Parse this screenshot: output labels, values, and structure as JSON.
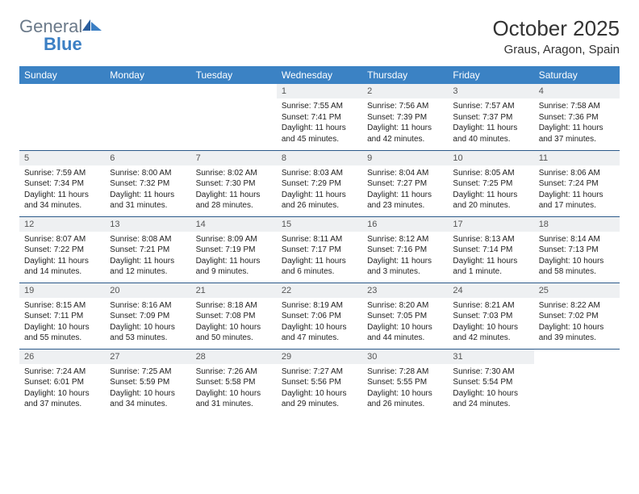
{
  "logo": {
    "general": "General",
    "blue": "Blue"
  },
  "title": "October 2025",
  "location": "Graus, Aragon, Spain",
  "colors": {
    "header_bg": "#3b82c4",
    "header_text": "#ffffff",
    "daynum_bg": "#eef0f2",
    "daynum_text": "#555555",
    "border": "#2c5a8a",
    "logo_general": "#6b7a8a",
    "logo_blue": "#3b7fc4"
  },
  "weekdays": [
    "Sunday",
    "Monday",
    "Tuesday",
    "Wednesday",
    "Thursday",
    "Friday",
    "Saturday"
  ],
  "weeks": [
    [
      {
        "day": "",
        "sunrise": "",
        "sunset": "",
        "daylight": ""
      },
      {
        "day": "",
        "sunrise": "",
        "sunset": "",
        "daylight": ""
      },
      {
        "day": "",
        "sunrise": "",
        "sunset": "",
        "daylight": ""
      },
      {
        "day": "1",
        "sunrise": "Sunrise: 7:55 AM",
        "sunset": "Sunset: 7:41 PM",
        "daylight": "Daylight: 11 hours and 45 minutes."
      },
      {
        "day": "2",
        "sunrise": "Sunrise: 7:56 AM",
        "sunset": "Sunset: 7:39 PM",
        "daylight": "Daylight: 11 hours and 42 minutes."
      },
      {
        "day": "3",
        "sunrise": "Sunrise: 7:57 AM",
        "sunset": "Sunset: 7:37 PM",
        "daylight": "Daylight: 11 hours and 40 minutes."
      },
      {
        "day": "4",
        "sunrise": "Sunrise: 7:58 AM",
        "sunset": "Sunset: 7:36 PM",
        "daylight": "Daylight: 11 hours and 37 minutes."
      }
    ],
    [
      {
        "day": "5",
        "sunrise": "Sunrise: 7:59 AM",
        "sunset": "Sunset: 7:34 PM",
        "daylight": "Daylight: 11 hours and 34 minutes."
      },
      {
        "day": "6",
        "sunrise": "Sunrise: 8:00 AM",
        "sunset": "Sunset: 7:32 PM",
        "daylight": "Daylight: 11 hours and 31 minutes."
      },
      {
        "day": "7",
        "sunrise": "Sunrise: 8:02 AM",
        "sunset": "Sunset: 7:30 PM",
        "daylight": "Daylight: 11 hours and 28 minutes."
      },
      {
        "day": "8",
        "sunrise": "Sunrise: 8:03 AM",
        "sunset": "Sunset: 7:29 PM",
        "daylight": "Daylight: 11 hours and 26 minutes."
      },
      {
        "day": "9",
        "sunrise": "Sunrise: 8:04 AM",
        "sunset": "Sunset: 7:27 PM",
        "daylight": "Daylight: 11 hours and 23 minutes."
      },
      {
        "day": "10",
        "sunrise": "Sunrise: 8:05 AM",
        "sunset": "Sunset: 7:25 PM",
        "daylight": "Daylight: 11 hours and 20 minutes."
      },
      {
        "day": "11",
        "sunrise": "Sunrise: 8:06 AM",
        "sunset": "Sunset: 7:24 PM",
        "daylight": "Daylight: 11 hours and 17 minutes."
      }
    ],
    [
      {
        "day": "12",
        "sunrise": "Sunrise: 8:07 AM",
        "sunset": "Sunset: 7:22 PM",
        "daylight": "Daylight: 11 hours and 14 minutes."
      },
      {
        "day": "13",
        "sunrise": "Sunrise: 8:08 AM",
        "sunset": "Sunset: 7:21 PM",
        "daylight": "Daylight: 11 hours and 12 minutes."
      },
      {
        "day": "14",
        "sunrise": "Sunrise: 8:09 AM",
        "sunset": "Sunset: 7:19 PM",
        "daylight": "Daylight: 11 hours and 9 minutes."
      },
      {
        "day": "15",
        "sunrise": "Sunrise: 8:11 AM",
        "sunset": "Sunset: 7:17 PM",
        "daylight": "Daylight: 11 hours and 6 minutes."
      },
      {
        "day": "16",
        "sunrise": "Sunrise: 8:12 AM",
        "sunset": "Sunset: 7:16 PM",
        "daylight": "Daylight: 11 hours and 3 minutes."
      },
      {
        "day": "17",
        "sunrise": "Sunrise: 8:13 AM",
        "sunset": "Sunset: 7:14 PM",
        "daylight": "Daylight: 11 hours and 1 minute."
      },
      {
        "day": "18",
        "sunrise": "Sunrise: 8:14 AM",
        "sunset": "Sunset: 7:13 PM",
        "daylight": "Daylight: 10 hours and 58 minutes."
      }
    ],
    [
      {
        "day": "19",
        "sunrise": "Sunrise: 8:15 AM",
        "sunset": "Sunset: 7:11 PM",
        "daylight": "Daylight: 10 hours and 55 minutes."
      },
      {
        "day": "20",
        "sunrise": "Sunrise: 8:16 AM",
        "sunset": "Sunset: 7:09 PM",
        "daylight": "Daylight: 10 hours and 53 minutes."
      },
      {
        "day": "21",
        "sunrise": "Sunrise: 8:18 AM",
        "sunset": "Sunset: 7:08 PM",
        "daylight": "Daylight: 10 hours and 50 minutes."
      },
      {
        "day": "22",
        "sunrise": "Sunrise: 8:19 AM",
        "sunset": "Sunset: 7:06 PM",
        "daylight": "Daylight: 10 hours and 47 minutes."
      },
      {
        "day": "23",
        "sunrise": "Sunrise: 8:20 AM",
        "sunset": "Sunset: 7:05 PM",
        "daylight": "Daylight: 10 hours and 44 minutes."
      },
      {
        "day": "24",
        "sunrise": "Sunrise: 8:21 AM",
        "sunset": "Sunset: 7:03 PM",
        "daylight": "Daylight: 10 hours and 42 minutes."
      },
      {
        "day": "25",
        "sunrise": "Sunrise: 8:22 AM",
        "sunset": "Sunset: 7:02 PM",
        "daylight": "Daylight: 10 hours and 39 minutes."
      }
    ],
    [
      {
        "day": "26",
        "sunrise": "Sunrise: 7:24 AM",
        "sunset": "Sunset: 6:01 PM",
        "daylight": "Daylight: 10 hours and 37 minutes."
      },
      {
        "day": "27",
        "sunrise": "Sunrise: 7:25 AM",
        "sunset": "Sunset: 5:59 PM",
        "daylight": "Daylight: 10 hours and 34 minutes."
      },
      {
        "day": "28",
        "sunrise": "Sunrise: 7:26 AM",
        "sunset": "Sunset: 5:58 PM",
        "daylight": "Daylight: 10 hours and 31 minutes."
      },
      {
        "day": "29",
        "sunrise": "Sunrise: 7:27 AM",
        "sunset": "Sunset: 5:56 PM",
        "daylight": "Daylight: 10 hours and 29 minutes."
      },
      {
        "day": "30",
        "sunrise": "Sunrise: 7:28 AM",
        "sunset": "Sunset: 5:55 PM",
        "daylight": "Daylight: 10 hours and 26 minutes."
      },
      {
        "day": "31",
        "sunrise": "Sunrise: 7:30 AM",
        "sunset": "Sunset: 5:54 PM",
        "daylight": "Daylight: 10 hours and 24 minutes."
      },
      {
        "day": "",
        "sunrise": "",
        "sunset": "",
        "daylight": ""
      }
    ]
  ]
}
